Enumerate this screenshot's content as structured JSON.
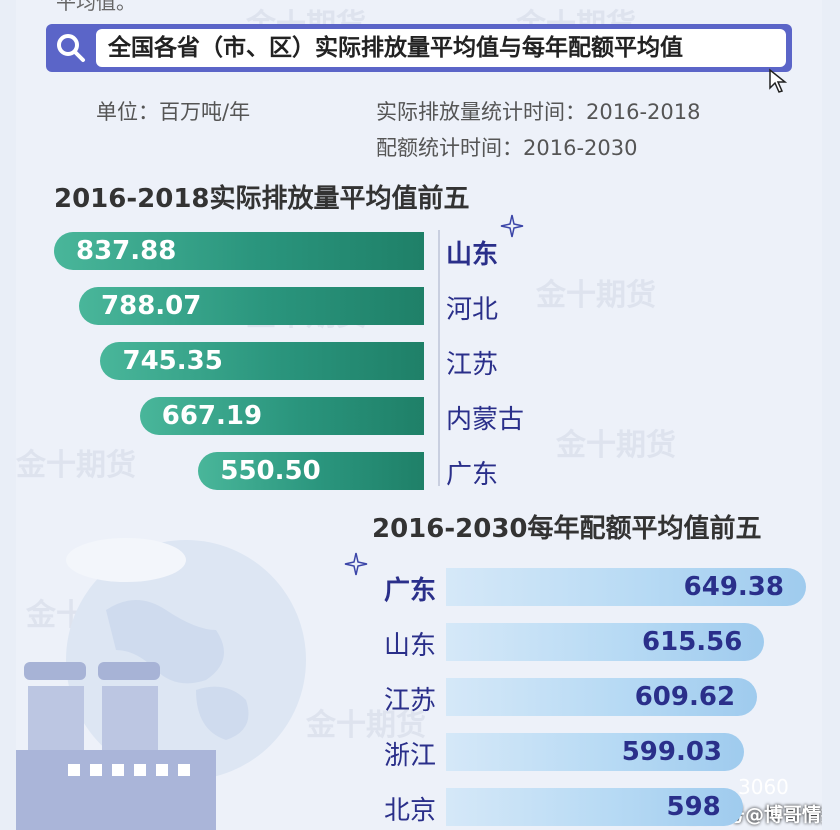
{
  "header": {
    "top_fragment": "平均值。",
    "search_text": "全国各省（市、区）实际排放量平均值与每年配额平均值"
  },
  "meta": {
    "unit": "单位：百万吨/年",
    "emission_period": "实际排放量统计时间：2016-2018",
    "quota_period": "配额统计时间：2016-2030"
  },
  "watermark_text": "金十期货",
  "footer": {
    "wechat_label": "3060",
    "sohu_label": "搜狐号@博哥情报站"
  },
  "chart_data": [
    {
      "type": "bar",
      "title": "2016-2018实际排放量平均值前五",
      "categories": [
        "山东",
        "河北",
        "江苏",
        "内蒙古",
        "广东"
      ],
      "values": [
        837.88,
        788.07,
        745.35,
        667.19,
        550.5
      ],
      "value_labels": [
        "837.88",
        "788.07",
        "745.35",
        "667.19",
        "550.50"
      ],
      "orientation": "horizontal",
      "color": "#2a957d"
    },
    {
      "type": "bar",
      "title": "2016-2030每年配额平均值前五",
      "categories": [
        "广东",
        "山东",
        "江苏",
        "浙江",
        "北京"
      ],
      "values": [
        649.38,
        615.56,
        609.62,
        599.03,
        598
      ],
      "value_labels": [
        "649.38",
        "615.56",
        "609.62",
        "599.03",
        "598"
      ],
      "orientation": "horizontal",
      "color": "#b7daf4"
    }
  ]
}
